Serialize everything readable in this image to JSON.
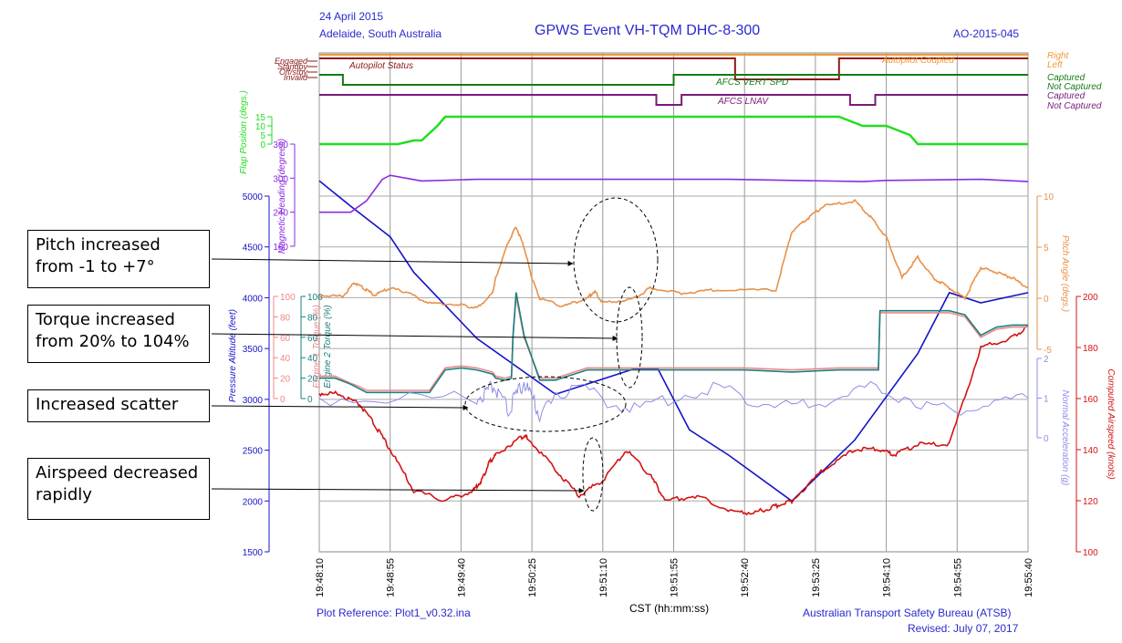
{
  "header": {
    "date": "24 April 2015",
    "location": "Adelaide, South Australia",
    "title": "GPWS Event  VH-TQM  DHC-8-300",
    "ref": "AO-2015-045"
  },
  "footer": {
    "plot_ref": "Plot Reference: Plot1_v0.32.ina",
    "xlabel": "CST (hh:mm:ss)",
    "org": "Australian Transport Safety Bureau (ATSB)",
    "revised": "Revised: July 07, 2017"
  },
  "colors": {
    "altitude": "#1414c8",
    "airspeed": "#d21414",
    "pitch": "#e8914a",
    "heading": "#8a2be2",
    "flap": "#22dd22",
    "eng1": "#ee8888",
    "eng2": "#1a8080",
    "accel": "#8c8ce8",
    "autopilot_status": "#8a1a1a",
    "autopilot_coupled": "#ee9933",
    "vert_spd": "#167a16",
    "lnav": "#7a1a7a"
  },
  "chart_data": {
    "type": "line",
    "x_ticks": [
      "19:48:10",
      "19:48:55",
      "19:49:40",
      "19:50:25",
      "19:51:10",
      "19:51:55",
      "19:52:40",
      "19:53:25",
      "19:54:10",
      "19:54:55",
      "19:55:40"
    ],
    "xlim": [
      "19:48:10",
      "19:55:40"
    ],
    "axes": [
      {
        "name": "Pressure Altitude (feet)",
        "ticks": [
          "1500",
          "2000",
          "2500",
          "3000",
          "3500",
          "4000",
          "4500",
          "5000"
        ],
        "range": [
          1500,
          5000
        ]
      },
      {
        "name": "Computed Airspeed (knots)",
        "ticks": [
          "100",
          "120",
          "140",
          "160",
          "180",
          "200"
        ],
        "range": [
          100,
          200
        ]
      },
      {
        "name": "Magnetic Heading (degrees)",
        "ticks": [
          "180",
          "240",
          "300",
          "360"
        ],
        "range": [
          180,
          360
        ]
      },
      {
        "name": "Pitch Angle (degs.)",
        "ticks": [
          "-5",
          "0",
          "5",
          "10"
        ],
        "range": [
          -5,
          10
        ]
      },
      {
        "name": "Engine 1 Torque (%)",
        "ticks": [
          "0",
          "20",
          "40",
          "60",
          "80",
          "100"
        ],
        "range": [
          0,
          100
        ]
      },
      {
        "name": "Engine 2 Torque (%)",
        "ticks": [
          "0",
          "20",
          "40",
          "60",
          "80",
          "100"
        ],
        "range": [
          0,
          100
        ]
      },
      {
        "name": "Normal Acceleration (g)",
        "ticks": [
          "0",
          "1",
          "2"
        ],
        "range": [
          0,
          2
        ]
      },
      {
        "name": "Flap Position (degs.)",
        "ticks": [
          "0",
          "5",
          "10",
          "15"
        ],
        "range": [
          0,
          15
        ]
      }
    ],
    "series": [
      {
        "name": "Pressure Altitude (feet)",
        "axis": 0,
        "x": [
          0,
          20,
          45,
          60,
          100,
          150,
          200,
          215,
          235,
          260,
          300,
          340,
          380,
          400,
          420,
          450
        ],
        "y": [
          5150,
          4900,
          4600,
          4250,
          3600,
          3050,
          3300,
          3300,
          2700,
          2450,
          2000,
          2600,
          3450,
          4050,
          3950,
          4050
        ]
      },
      {
        "name": "Computed Airspeed (knots)",
        "axis": 1,
        "x": [
          0,
          12,
          25,
          35,
          45,
          60,
          80,
          98,
          103,
          108,
          112,
          128,
          132,
          150,
          165,
          180,
          195,
          210,
          220,
          240,
          265,
          280,
          290,
          300,
          320,
          340,
          355,
          365,
          380,
          400,
          420,
          440,
          450
        ],
        "y": [
          162,
          162,
          158,
          150,
          140,
          124,
          120,
          124,
          128,
          135,
          138,
          145,
          145,
          132,
          122,
          128,
          140,
          130,
          120,
          122,
          115,
          116,
          118,
          120,
          132,
          140,
          140,
          138,
          142,
          142,
          180,
          184,
          188
        ]
      },
      {
        "name": "Magnetic Heading (degrees)",
        "axis": 2,
        "x": [
          0,
          20,
          30,
          40,
          45,
          65,
          100,
          180,
          260,
          345,
          360,
          420,
          450
        ],
        "y": [
          240,
          240,
          260,
          298,
          305,
          295,
          298,
          298,
          298,
          294,
          296,
          298,
          294
        ]
      },
      {
        "name": "Pitch Angle (degs.)",
        "axis": 3,
        "x": [
          0,
          15,
          22,
          28,
          35,
          45,
          55,
          70,
          90,
          100,
          110,
          112,
          120,
          125,
          130,
          135,
          140,
          155,
          170,
          175,
          180,
          200,
          210,
          230,
          250,
          290,
          300,
          310,
          320,
          340,
          350,
          360,
          370,
          380,
          390,
          400,
          410,
          420,
          430,
          440,
          450
        ],
        "y": [
          0.3,
          0.2,
          1.5,
          1.0,
          0.3,
          1.0,
          0.6,
          -0.5,
          -0.6,
          -1.0,
          0.5,
          2.0,
          5.5,
          7.0,
          5.0,
          2.0,
          0.0,
          -0.8,
          0.0,
          0.7,
          -0.5,
          0.0,
          1.0,
          0.5,
          0.8,
          0.8,
          6.5,
          7.8,
          9.0,
          9.5,
          8.0,
          6.0,
          2.0,
          4.0,
          2.0,
          1.0,
          0.0,
          3.0,
          2.5,
          2.0,
          1.0
        ]
      },
      {
        "name": "Engine 1 Torque (%)",
        "axis": 4,
        "x": [
          0,
          10,
          20,
          25,
          30,
          70,
          80,
          90,
          100,
          110,
          112,
          118,
          122,
          123,
          125,
          130,
          140,
          150,
          170,
          180,
          200,
          240,
          270,
          300,
          330,
          355,
          356,
          360,
          375,
          400,
          410,
          420,
          430,
          440,
          450
        ],
        "y": [
          22,
          22,
          15,
          12,
          8,
          8,
          30,
          32,
          30,
          26,
          22,
          20,
          22,
          60,
          100,
          60,
          20,
          20,
          30,
          30,
          30,
          30,
          30,
          28,
          30,
          30,
          84,
          84,
          84,
          84,
          80,
          60,
          68,
          70,
          70
        ]
      },
      {
        "name": "Engine 2 Torque (%)",
        "axis": 5,
        "x": [
          0,
          10,
          20,
          25,
          30,
          70,
          80,
          90,
          100,
          110,
          112,
          118,
          122,
          123,
          125,
          130,
          140,
          150,
          170,
          180,
          200,
          240,
          270,
          300,
          330,
          355,
          356,
          360,
          375,
          400,
          410,
          420,
          430,
          440,
          450
        ],
        "y": [
          20,
          20,
          14,
          10,
          6,
          6,
          28,
          30,
          28,
          24,
          20,
          18,
          20,
          62,
          104,
          62,
          18,
          18,
          28,
          28,
          28,
          28,
          28,
          26,
          28,
          28,
          86,
          86,
          86,
          86,
          82,
          62,
          70,
          72,
          72
        ]
      },
      {
        "name": "Normal Acceleration (g)",
        "axis": 6,
        "x": [
          0,
          100,
          110,
          120,
          130,
          140,
          160,
          200,
          250,
          300,
          350,
          400,
          450
        ],
        "y": [
          1.0,
          1.0,
          1.3,
          0.7,
          1.4,
          0.6,
          1.3,
          0.7,
          1.3,
          0.7,
          1.3,
          0.7,
          1.0
        ]
      },
      {
        "name": "Flap Position (degs.)",
        "axis": 7,
        "x": [
          0,
          50,
          55,
          60,
          65,
          75,
          80,
          83,
          330,
          345,
          360,
          375,
          380,
          450
        ],
        "y": [
          0,
          0,
          1,
          2,
          2,
          10,
          15,
          15,
          15,
          10,
          10,
          5,
          0,
          0
        ]
      }
    ],
    "discretes": [
      {
        "name": "Autopilot Status",
        "levels": [
          "Engaged",
          "Standby",
          "Off/stby",
          "Invalid"
        ]
      },
      {
        "name": "Autopilot Coupled",
        "levels": [
          "Right",
          "Left"
        ]
      },
      {
        "name": "AFCS VERT SPD",
        "levels": [
          "Captured",
          "Not Captured"
        ]
      },
      {
        "name": "AFCS LNAV",
        "levels": [
          "Captured",
          "Not Captured"
        ]
      }
    ]
  },
  "callouts": [
    {
      "text": "Pitch increased from -1 to +7°"
    },
    {
      "text": "Torque increased from 20% to 104%"
    },
    {
      "text": "Increased scatter"
    },
    {
      "text": "Airspeed decreased rapidly"
    }
  ]
}
